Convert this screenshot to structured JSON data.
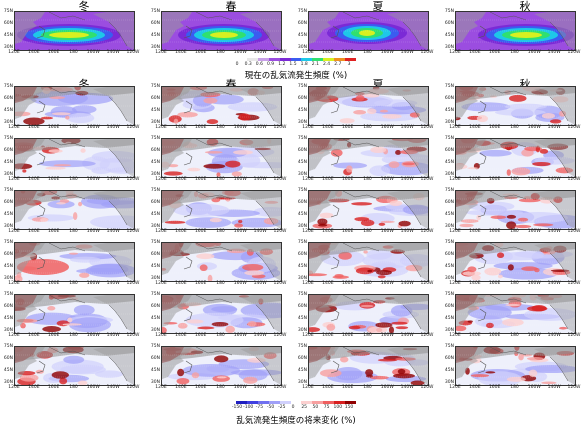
{
  "seasons": [
    "冬",
    "春",
    "夏",
    "秋"
  ],
  "lat_labels": [
    "75N",
    "60N",
    "45N",
    "30N"
  ],
  "lon_labels": [
    "120E",
    "140E",
    "160E",
    "180",
    "160W",
    "140W",
    "120W"
  ],
  "top_caption": "現在の乱気流発生頻度 (%)",
  "top_ticks": [
    "0",
    "0.3",
    "0.6",
    "0.9",
    "1.2",
    "1.5",
    "1.8",
    "2.1",
    "2.4",
    "2.7",
    "3"
  ],
  "bottom_caption": "乱気流発生頻度の将来変化 (%)",
  "bottom_ticks": [
    "-150",
    "-100",
    "-75",
    "-50",
    "-25",
    "0",
    "25",
    "50",
    "75",
    "100",
    "150"
  ],
  "colors": {
    "present_scale": [
      "#ffffff",
      "#e8e8e8",
      "#c8a0e8",
      "#9b4de0",
      "#7b2ad6",
      "#3b5cf0",
      "#1ec8e8",
      "#30e070",
      "#d8f020",
      "#f09020",
      "#e02020"
    ],
    "change_scale": [
      "#2020c0",
      "#4040e0",
      "#7070f0",
      "#a0a0f8",
      "#d0d0fc",
      "#ffffff",
      "#fcd0d0",
      "#f8a0a0",
      "#f06060",
      "#d82020",
      "#900000"
    ],
    "land": "#9a9a9a"
  }
}
